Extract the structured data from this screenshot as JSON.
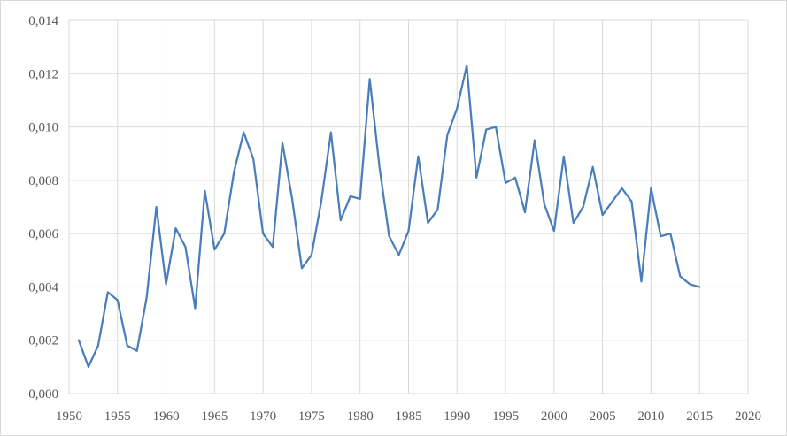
{
  "chart_data": {
    "type": "line",
    "title": "",
    "xlabel": "",
    "ylabel": "",
    "xlim": [
      1950,
      2020
    ],
    "ylim": [
      0,
      0.014
    ],
    "x_ticks": [
      1950,
      1955,
      1960,
      1965,
      1970,
      1975,
      1980,
      1985,
      1990,
      1995,
      2000,
      2005,
      2010,
      2015,
      2020
    ],
    "x_tick_labels": [
      "1950",
      "1955",
      "1960",
      "1965",
      "1970",
      "1975",
      "1980",
      "1985",
      "1990",
      "1995",
      "2000",
      "2005",
      "2010",
      "2015",
      "2020"
    ],
    "y_ticks": [
      0,
      0.002,
      0.004,
      0.006,
      0.008,
      0.01,
      0.012,
      0.014
    ],
    "y_tick_labels": [
      "0,000",
      "0,002",
      "0,004",
      "0,006",
      "0,008",
      "0,010",
      "0,012",
      "0,014"
    ],
    "grid": {
      "horizontal": true,
      "vertical": true
    },
    "legend": "none",
    "series_color": "#4a7ebb",
    "series": [
      {
        "x": [
          1951,
          1952,
          1953,
          1954,
          1955,
          1956,
          1957,
          1958,
          1959,
          1960,
          1961,
          1962,
          1963,
          1964,
          1965,
          1966,
          1967,
          1968,
          1969,
          1970,
          1971,
          1972,
          1973,
          1974,
          1975,
          1976,
          1977,
          1978,
          1979,
          1980,
          1981,
          1982,
          1983,
          1984,
          1985,
          1986,
          1987,
          1988,
          1989,
          1990,
          1991,
          1992,
          1993,
          1994,
          1995,
          1996,
          1997,
          1998,
          1999,
          2000,
          2001,
          2002,
          2003,
          2004,
          2005,
          2006,
          2007,
          2008,
          2009,
          2010,
          2011,
          2012,
          2013,
          2014,
          2015
        ],
        "values": [
          0.002,
          0.001,
          0.0018,
          0.0038,
          0.0035,
          0.0018,
          0.0016,
          0.0036,
          0.007,
          0.0041,
          0.0062,
          0.0055,
          0.0032,
          0.0076,
          0.0054,
          0.006,
          0.0083,
          0.0098,
          0.0088,
          0.006,
          0.0055,
          0.0094,
          0.0073,
          0.0047,
          0.0052,
          0.0072,
          0.0098,
          0.0065,
          0.0074,
          0.0073,
          0.0118,
          0.0085,
          0.0059,
          0.0052,
          0.0061,
          0.0089,
          0.0064,
          0.0069,
          0.0097,
          0.0107,
          0.0123,
          0.0081,
          0.0099,
          0.01,
          0.0079,
          0.0081,
          0.0068,
          0.0095,
          0.0071,
          0.0061,
          0.0089,
          0.0064,
          0.007,
          0.0085,
          0.0067,
          0.0072,
          0.0077,
          0.0072,
          0.0042,
          0.0077,
          0.0059,
          0.006,
          0.0044,
          0.0041,
          0.004
        ]
      }
    ]
  }
}
